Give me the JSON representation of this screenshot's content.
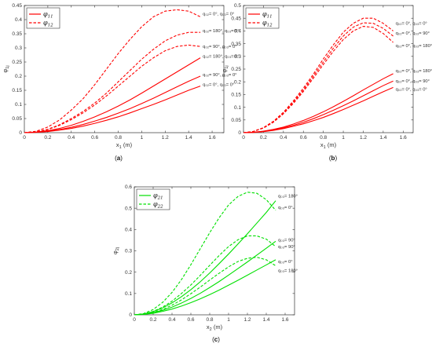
{
  "chart_data": [
    {
      "id": "a",
      "type": "line",
      "caption": "a",
      "xlabel_main": "x",
      "xlabel_sub": "1",
      "xlabel_unit": " (m)",
      "ylabel_main": "φ",
      "ylabel_sub": "1j",
      "xlim": [
        0,
        1.7
      ],
      "ylim": [
        0,
        0.45
      ],
      "xticks": [
        "0",
        "0.2",
        "0.4",
        "0.6",
        "0.8",
        "1",
        "1.2",
        "1.4",
        "1.6"
      ],
      "yticks": [
        "0",
        "0.05",
        "0.1",
        "0.15",
        "0.2",
        "0.25",
        "0.3",
        "0.35",
        "0.4",
        "0.45"
      ],
      "color": "#ff0000",
      "legend": [
        {
          "main": "φ",
          "sub": "11",
          "style": "solid"
        },
        {
          "main": "φ",
          "sub": "12",
          "style": "dashed"
        }
      ],
      "series": [
        {
          "style": "dashed",
          "x": [
            0,
            0.1,
            0.2,
            0.3,
            0.4,
            0.5,
            0.6,
            0.7,
            0.8,
            0.9,
            1.0,
            1.1,
            1.2,
            1.3,
            1.4,
            1.5
          ],
          "y": [
            0,
            0.005,
            0.02,
            0.045,
            0.08,
            0.12,
            0.17,
            0.225,
            0.28,
            0.33,
            0.375,
            0.41,
            0.43,
            0.435,
            0.43,
            0.41
          ],
          "label": "q₀₂= 0°, q₀₃= 0°"
        },
        {
          "style": "dashed",
          "x": [
            0,
            0.1,
            0.2,
            0.3,
            0.4,
            0.5,
            0.6,
            0.7,
            0.8,
            0.9,
            1.0,
            1.1,
            1.2,
            1.3,
            1.4,
            1.5
          ],
          "y": [
            0,
            0.003,
            0.012,
            0.028,
            0.05,
            0.075,
            0.105,
            0.14,
            0.18,
            0.22,
            0.26,
            0.295,
            0.325,
            0.345,
            0.355,
            0.355
          ],
          "label": "q₀₂= 180°, q₀₃= 0°"
        },
        {
          "style": "dashed",
          "x": [
            0,
            0.1,
            0.2,
            0.3,
            0.4,
            0.5,
            0.6,
            0.7,
            0.8,
            0.9,
            1.0,
            1.1,
            1.2,
            1.3,
            1.4,
            1.5
          ],
          "y": [
            0,
            0.003,
            0.011,
            0.026,
            0.046,
            0.07,
            0.098,
            0.13,
            0.165,
            0.2,
            0.235,
            0.265,
            0.29,
            0.305,
            0.31,
            0.305
          ],
          "label": "q₀₂= 90°, q₀₃= 0°"
        },
        {
          "style": "solid",
          "x": [
            0,
            0.1,
            0.2,
            0.3,
            0.4,
            0.5,
            0.6,
            0.7,
            0.8,
            0.9,
            1.0,
            1.1,
            1.2,
            1.3,
            1.4,
            1.5
          ],
          "y": [
            0,
            0.002,
            0.007,
            0.015,
            0.026,
            0.04,
            0.056,
            0.074,
            0.094,
            0.116,
            0.14,
            0.165,
            0.19,
            0.215,
            0.24,
            0.265
          ],
          "label": "q₀₂= 180°, q₀₃= 0°"
        },
        {
          "style": "solid",
          "x": [
            0,
            0.1,
            0.2,
            0.3,
            0.4,
            0.5,
            0.6,
            0.7,
            0.8,
            0.9,
            1.0,
            1.1,
            1.2,
            1.3,
            1.4,
            1.5
          ],
          "y": [
            0,
            0.0015,
            0.005,
            0.011,
            0.019,
            0.029,
            0.041,
            0.054,
            0.069,
            0.085,
            0.103,
            0.122,
            0.142,
            0.162,
            0.182,
            0.2
          ],
          "label": "q₀₂= 90°, q₀₃= 0°"
        },
        {
          "style": "solid",
          "x": [
            0,
            0.1,
            0.2,
            0.3,
            0.4,
            0.5,
            0.6,
            0.7,
            0.8,
            0.9,
            1.0,
            1.1,
            1.2,
            1.3,
            1.4,
            1.5
          ],
          "y": [
            0,
            0.0012,
            0.004,
            0.009,
            0.015,
            0.023,
            0.033,
            0.044,
            0.056,
            0.07,
            0.085,
            0.1,
            0.116,
            0.133,
            0.15,
            0.165
          ],
          "label": "q₀₂= 0°, q₀₃= 0°"
        }
      ]
    },
    {
      "id": "b",
      "type": "line",
      "caption": "b",
      "xlabel_main": "x",
      "xlabel_sub": "1",
      "xlabel_unit": " (m)",
      "ylabel_main": "φ",
      "ylabel_sub": "1j",
      "xlim": [
        0,
        1.7
      ],
      "ylim": [
        0,
        0.5
      ],
      "xticks": [
        "0",
        "0.2",
        "0.4",
        "0.6",
        "0.8",
        "1",
        "1.2",
        "1.4",
        "1.6"
      ],
      "yticks": [
        "0",
        "0.05",
        "0.1",
        "0.15",
        "0.2",
        "0.25",
        "0.3",
        "0.35",
        "0.4",
        "0.45",
        "0.5"
      ],
      "color": "#ff0000",
      "legend": [
        {
          "main": "φ",
          "sub": "11",
          "style": "solid"
        },
        {
          "main": "φ",
          "sub": "12",
          "style": "dashed"
        }
      ],
      "series": [
        {
          "style": "dashed",
          "x": [
            0,
            0.1,
            0.2,
            0.3,
            0.4,
            0.5,
            0.6,
            0.7,
            0.8,
            0.9,
            1.0,
            1.1,
            1.2,
            1.3,
            1.4,
            1.5
          ],
          "y": [
            0,
            0.005,
            0.02,
            0.045,
            0.08,
            0.125,
            0.175,
            0.23,
            0.29,
            0.345,
            0.395,
            0.43,
            0.45,
            0.45,
            0.43,
            0.4
          ],
          "label": "q₀₂= 0°, q₀₃= 0°"
        },
        {
          "style": "dashed",
          "x": [
            0,
            0.1,
            0.2,
            0.3,
            0.4,
            0.5,
            0.6,
            0.7,
            0.8,
            0.9,
            1.0,
            1.1,
            1.2,
            1.3,
            1.4,
            1.5
          ],
          "y": [
            0,
            0.005,
            0.019,
            0.043,
            0.077,
            0.12,
            0.168,
            0.222,
            0.278,
            0.332,
            0.38,
            0.415,
            0.432,
            0.43,
            0.41,
            0.38
          ],
          "label": "q₀₂= 0°, q₀₃= 90°"
        },
        {
          "style": "dashed",
          "x": [
            0,
            0.1,
            0.2,
            0.3,
            0.4,
            0.5,
            0.6,
            0.7,
            0.8,
            0.9,
            1.0,
            1.1,
            1.2,
            1.3,
            1.4,
            1.5
          ],
          "y": [
            0,
            0.005,
            0.018,
            0.041,
            0.074,
            0.115,
            0.162,
            0.214,
            0.268,
            0.32,
            0.366,
            0.4,
            0.418,
            0.414,
            0.39,
            0.355
          ],
          "label": "q₀₂= 0°, q₀₃= 180°"
        },
        {
          "style": "solid",
          "x": [
            0,
            0.1,
            0.2,
            0.3,
            0.4,
            0.5,
            0.6,
            0.7,
            0.8,
            0.9,
            1.0,
            1.1,
            1.2,
            1.3,
            1.4,
            1.5
          ],
          "y": [
            0,
            0.0016,
            0.006,
            0.013,
            0.022,
            0.034,
            0.048,
            0.064,
            0.082,
            0.102,
            0.123,
            0.145,
            0.168,
            0.19,
            0.212,
            0.232
          ],
          "label": "q₀₂= 0°, q₀₃= 180°"
        },
        {
          "style": "solid",
          "x": [
            0,
            0.1,
            0.2,
            0.3,
            0.4,
            0.5,
            0.6,
            0.7,
            0.8,
            0.9,
            1.0,
            1.1,
            1.2,
            1.3,
            1.4,
            1.5
          ],
          "y": [
            0,
            0.0013,
            0.005,
            0.011,
            0.019,
            0.029,
            0.041,
            0.055,
            0.071,
            0.088,
            0.106,
            0.125,
            0.145,
            0.165,
            0.185,
            0.203
          ],
          "label": "q₀₂= 0°, q₀₃= 90°"
        },
        {
          "style": "solid",
          "x": [
            0,
            0.1,
            0.2,
            0.3,
            0.4,
            0.5,
            0.6,
            0.7,
            0.8,
            0.9,
            1.0,
            1.1,
            1.2,
            1.3,
            1.4,
            1.5
          ],
          "y": [
            0,
            0.0011,
            0.004,
            0.009,
            0.016,
            0.025,
            0.035,
            0.047,
            0.06,
            0.075,
            0.091,
            0.108,
            0.125,
            0.143,
            0.161,
            0.178
          ],
          "label": "q₀₂= 0°, q₀₃= 0°"
        }
      ]
    },
    {
      "id": "c",
      "type": "line",
      "caption": "c",
      "xlabel_main": "x",
      "xlabel_sub": "2",
      "xlabel_unit": " (m)",
      "ylabel_main": "φ",
      "ylabel_sub": "2j",
      "xlim": [
        0,
        1.7
      ],
      "ylim": [
        0,
        0.6
      ],
      "xticks": [
        "0",
        "0.2",
        "0.4",
        "0.6",
        "0.8",
        "1",
        "1.2",
        "1.4",
        "1.6"
      ],
      "yticks": [
        "0",
        "0.1",
        "0.2",
        "0.3",
        "0.4",
        "0.5",
        "0.6"
      ],
      "color": "#00e000",
      "legend": [
        {
          "main": "φ",
          "sub": "21",
          "style": "solid"
        },
        {
          "main": "φ",
          "sub": "22",
          "style": "dashed"
        }
      ],
      "series": [
        {
          "style": "dashed",
          "x": [
            0,
            0.1,
            0.2,
            0.3,
            0.4,
            0.5,
            0.6,
            0.7,
            0.8,
            0.9,
            1.0,
            1.1,
            1.2,
            1.3,
            1.4,
            1.5
          ],
          "y": [
            0,
            0.006,
            0.025,
            0.058,
            0.105,
            0.165,
            0.235,
            0.31,
            0.385,
            0.455,
            0.515,
            0.555,
            0.575,
            0.57,
            0.54,
            0.49
          ],
          "label": "q₀₃= 0°"
        },
        {
          "style": "dashed",
          "x": [
            0,
            0.1,
            0.2,
            0.3,
            0.4,
            0.5,
            0.6,
            0.7,
            0.8,
            0.9,
            1.0,
            1.1,
            1.2,
            1.3,
            1.4,
            1.5
          ],
          "y": [
            0,
            0.004,
            0.016,
            0.036,
            0.064,
            0.1,
            0.14,
            0.185,
            0.232,
            0.278,
            0.32,
            0.352,
            0.37,
            0.37,
            0.355,
            0.32
          ],
          "label": "q₀₃= 90°"
        },
        {
          "style": "dashed",
          "x": [
            0,
            0.1,
            0.2,
            0.3,
            0.4,
            0.5,
            0.6,
            0.7,
            0.8,
            0.9,
            1.0,
            1.1,
            1.2,
            1.3,
            1.4,
            1.5
          ],
          "y": [
            0,
            0.003,
            0.011,
            0.025,
            0.045,
            0.07,
            0.099,
            0.13,
            0.163,
            0.195,
            0.225,
            0.25,
            0.265,
            0.27,
            0.258,
            0.23
          ],
          "label": "q₀₃= 180°"
        },
        {
          "style": "solid",
          "x": [
            0,
            0.1,
            0.2,
            0.3,
            0.4,
            0.5,
            0.6,
            0.7,
            0.8,
            0.9,
            1.0,
            1.1,
            1.2,
            1.3,
            1.4,
            1.5
          ],
          "y": [
            0,
            0.004,
            0.015,
            0.032,
            0.056,
            0.085,
            0.118,
            0.155,
            0.196,
            0.24,
            0.285,
            0.332,
            0.38,
            0.43,
            0.48,
            0.535
          ],
          "label": "q₀₃= 180°"
        },
        {
          "style": "solid",
          "x": [
            0,
            0.1,
            0.2,
            0.3,
            0.4,
            0.5,
            0.6,
            0.7,
            0.8,
            0.9,
            1.0,
            1.1,
            1.2,
            1.3,
            1.4,
            1.5
          ],
          "y": [
            0,
            0.003,
            0.01,
            0.021,
            0.036,
            0.055,
            0.077,
            0.101,
            0.128,
            0.156,
            0.186,
            0.217,
            0.248,
            0.28,
            0.312,
            0.345
          ],
          "label": "q₀₃= 90°"
        },
        {
          "style": "solid",
          "x": [
            0,
            0.1,
            0.2,
            0.3,
            0.4,
            0.5,
            0.6,
            0.7,
            0.8,
            0.9,
            1.0,
            1.1,
            1.2,
            1.3,
            1.4,
            1.5
          ],
          "y": [
            0,
            0.002,
            0.007,
            0.016,
            0.027,
            0.041,
            0.057,
            0.075,
            0.095,
            0.116,
            0.139,
            0.162,
            0.186,
            0.21,
            0.234,
            0.258
          ],
          "label": "q₀₃= 0°"
        }
      ]
    }
  ]
}
